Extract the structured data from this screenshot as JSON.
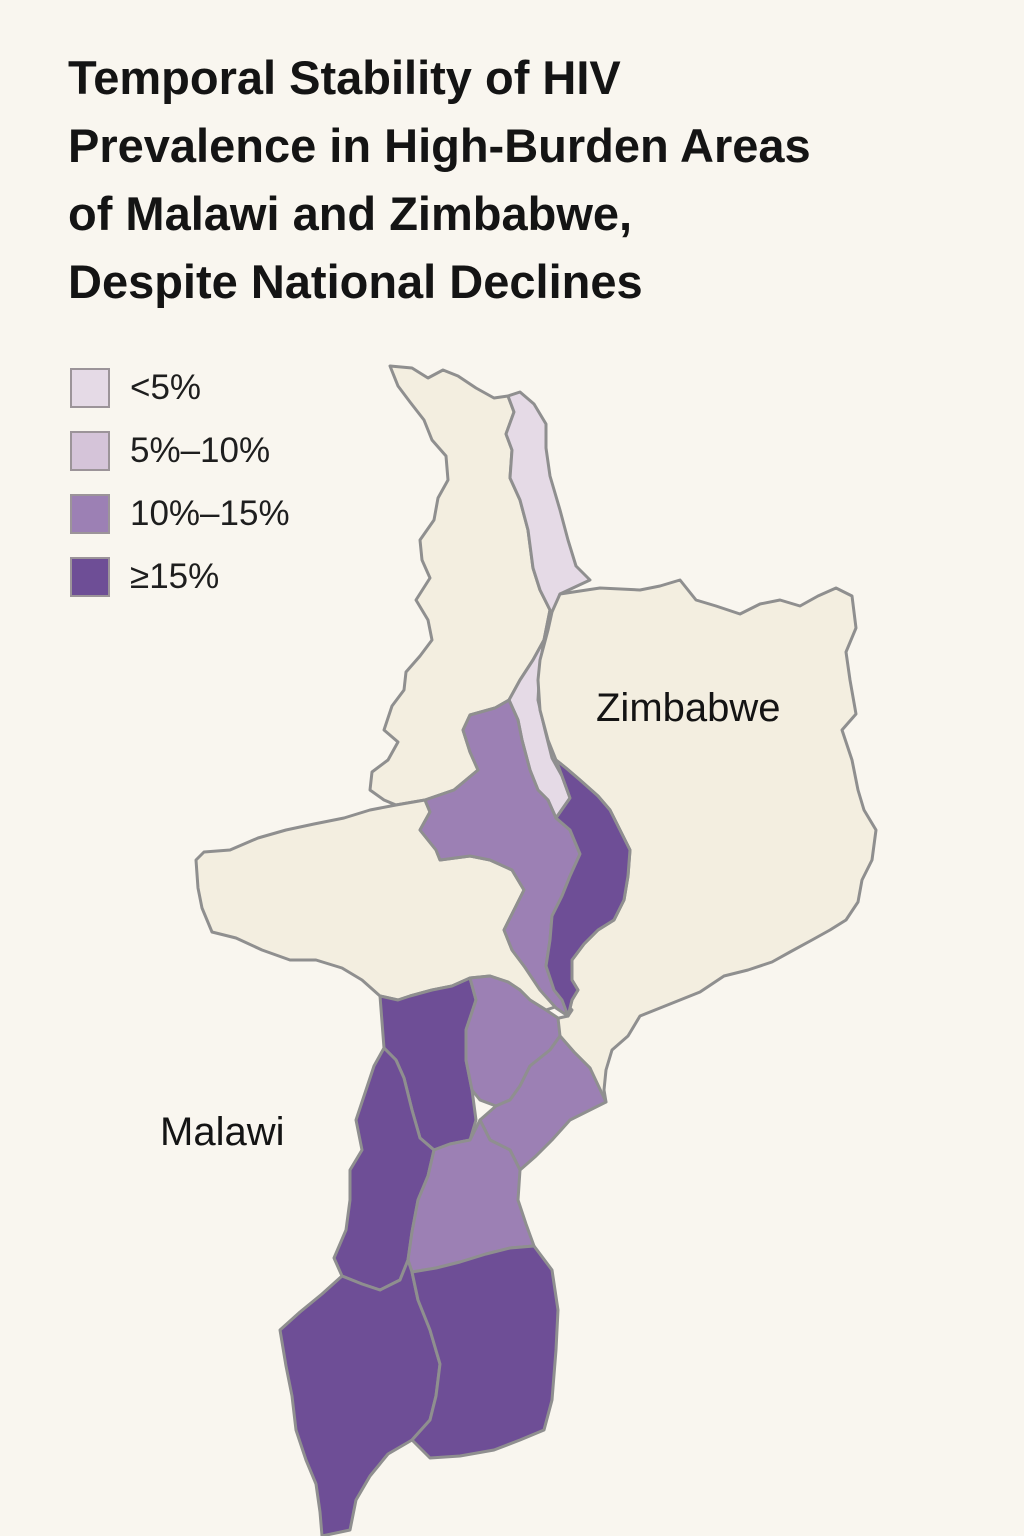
{
  "title": {
    "lines": [
      "Temporal Stability of HIV",
      "Prevalence in High-Burden Areas",
      "of Malawi and Zimbabwe,",
      "Despite National Declines"
    ]
  },
  "legend": {
    "items": [
      {
        "label": "<5%",
        "color": "#e5dae6"
      },
      {
        "label": "5%–10%",
        "color": "#d5c4d9"
      },
      {
        "label": "10%–15%",
        "color": "#9c80b4"
      },
      {
        "label": "≥15%",
        "color": "#6e4e96"
      }
    ]
  },
  "map": {
    "country_labels": {
      "zimbabwe": "Zimbabwe",
      "malawi": "Malawi"
    },
    "colors": {
      "background": "#f9f6ef",
      "no_data_fill": "#f3eee0",
      "border": "#8f8f8f"
    },
    "regions": [
      {
        "name": "northern-strip",
        "category": "none"
      },
      {
        "name": "lake-strip",
        "category": "<5%"
      },
      {
        "name": "zimbabwe-block",
        "category": "none"
      },
      {
        "name": "western-arm",
        "category": "none"
      },
      {
        "name": "central-west",
        "category": "10%–15%"
      },
      {
        "name": "eastern-spine",
        "category": "≥15%"
      },
      {
        "name": "southwest-block",
        "category": "≥15%"
      },
      {
        "name": "south-central",
        "category": "10%–15%"
      },
      {
        "name": "east-wedge",
        "category": "10%–15%"
      },
      {
        "name": "lower-west",
        "category": "≥15%"
      },
      {
        "name": "lower-central",
        "category": "10%–15%"
      },
      {
        "name": "south-tip",
        "category": "≥15%"
      },
      {
        "name": "southeast",
        "category": "≥15%"
      }
    ]
  }
}
